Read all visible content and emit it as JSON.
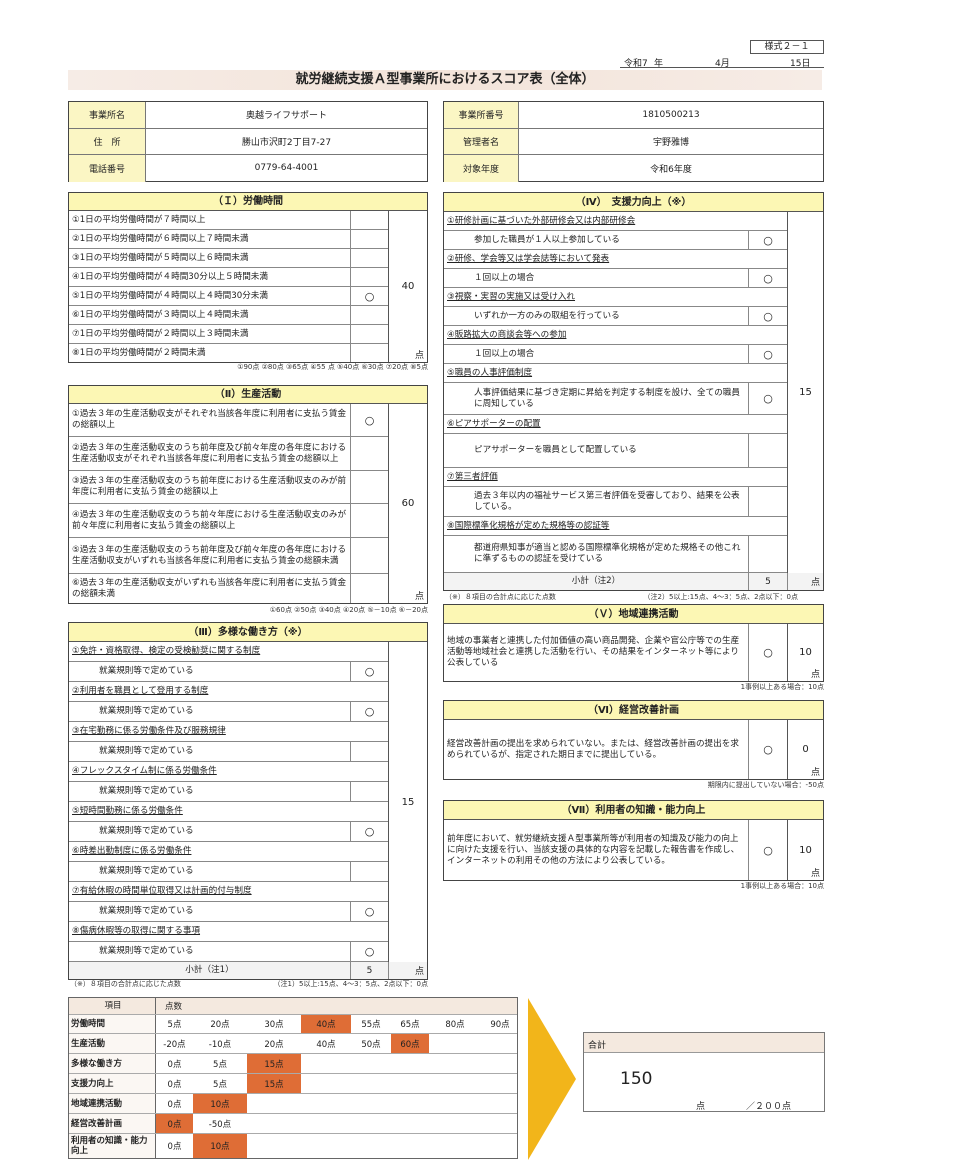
{
  "header": {
    "form_id": "様式２－１",
    "era_year": "令和7",
    "year_unit": "年",
    "month": "4月",
    "day": "15日",
    "title": "就労継続支援Ａ型事業所におけるスコア表（全体）"
  },
  "info_left": [
    {
      "label": "事業所名",
      "value": "奥越ライフサポート"
    },
    {
      "label": "住　所",
      "value": "勝山市沢町2丁目7-27"
    },
    {
      "label": "電話番号",
      "value": "0779-64-4001"
    }
  ],
  "info_right": [
    {
      "label": "事業所番号",
      "value": "1810500213"
    },
    {
      "label": "管理者名",
      "value": "宇野雅博"
    },
    {
      "label": "対象年度",
      "value": "令和6年度"
    }
  ],
  "sec1": {
    "title": "（Ｉ）労働時間",
    "score": "40",
    "unit": "点",
    "note": "①90点 ②80点 ③65点 ④55 点 ⑤40点 ⑥30点 ⑦20点 ⑧5点",
    "items": [
      {
        "text": "①1日の平均労働時間が７時間以上",
        "mark": ""
      },
      {
        "text": "②1日の平均労働時間が６時間以上７時間未満",
        "mark": ""
      },
      {
        "text": "③1日の平均労働時間が５時間以上６時間未満",
        "mark": ""
      },
      {
        "text": "④1日の平均労働時間が４時間30分以上５時間未満",
        "mark": ""
      },
      {
        "text": "⑤1日の平均労働時間が４時間以上４時間30分未満",
        "mark": "○"
      },
      {
        "text": "⑥1日の平均労働時間が３時間以上４時間未満",
        "mark": ""
      },
      {
        "text": "⑦1日の平均労働時間が２時間以上３時間未満",
        "mark": ""
      },
      {
        "text": "⑧1日の平均労働時間が２時間未満",
        "mark": ""
      }
    ]
  },
  "sec2": {
    "title": "（Ⅱ）生産活動",
    "score": "60",
    "unit": "点",
    "note": "①60点 ②50点 ③40点 ④20点 ⑤－10点 ⑥－20点",
    "items": [
      {
        "text": "①過去３年の生産活動収支がそれぞれ当該各年度に利用者に支払う賃金の総額以上",
        "mark": "○"
      },
      {
        "text": "②過去３年の生産活動収支のうち前年度及び前々年度の各年度における生産活動収支がそれぞれ当該各年度に利用者に支払う賃金の総額以上",
        "mark": ""
      },
      {
        "text": "③過去３年の生産活動収支のうち前年度における生産活動収支のみが前年度に利用者に支払う賃金の総額以上",
        "mark": ""
      },
      {
        "text": "④過去３年の生産活動収支のうち前々年度における生産活動収支のみが前々年度に利用者に支払う賃金の総額以上",
        "mark": ""
      },
      {
        "text": "⑤過去３年の生産活動収支のうち前年度及び前々年度の各年度における生産活動収支がいずれも当該各年度に利用者に支払う賃金の総額未満",
        "mark": ""
      },
      {
        "text": "⑥過去３年の生産活動収支がいずれも当該各年度に利用者に支払う賃金の総額未満",
        "mark": ""
      }
    ]
  },
  "sec3": {
    "title": "（Ⅲ）多様な働き方（※）",
    "score": "15",
    "subtotal_label": "小計（注1）",
    "subtotal": "5",
    "unit": "点",
    "note_left": "（※）８項目の合計点に応じた点数",
    "note_right": "（注1）5以上:15点、4～3：5点、2点以下：0点",
    "items": [
      {
        "heading": "①免許・資格取得、検定の受検勧奨に関する制度",
        "sub": "就業規則等で定めている",
        "mark": "○"
      },
      {
        "heading": "②利用者を職員として登用する制度",
        "sub": "就業規則等で定めている",
        "mark": "○"
      },
      {
        "heading": "③在宅勤務に係る労働条件及び服務規律",
        "sub": "就業規則等で定めている",
        "mark": ""
      },
      {
        "heading": "④フレックスタイム制に係る労働条件",
        "sub": "就業規則等で定めている",
        "mark": ""
      },
      {
        "heading": "⑤短時間勤務に係る労働条件",
        "sub": "就業規則等で定めている",
        "mark": "○"
      },
      {
        "heading": "⑥時差出勤制度に係る労働条件",
        "sub": "就業規則等で定めている",
        "mark": ""
      },
      {
        "heading": "⑦有給休暇の時間単位取得又は計画的付与制度",
        "sub": "就業規則等で定めている",
        "mark": "○"
      },
      {
        "heading": "⑧傷病休暇等の取得に関する事項",
        "sub": "就業規則等で定めている",
        "mark": "○"
      }
    ]
  },
  "sec4": {
    "title": "（Ⅳ）　支援力向上（※）",
    "score": "15",
    "subtotal_label": "小計（注2）",
    "subtotal": "5",
    "unit": "点",
    "note_left": "（※）８項目の合計点に応じた点数",
    "note_right": "（注2）5以上:15点、4～3：5点、2点以下：0点",
    "items": [
      {
        "heading": "①研修計画に基づいた外部研修会又は内部研修会",
        "sub": "参加した職員が１人以上参加している",
        "mark": "○"
      },
      {
        "heading": "②研修、学会等又は学会誌等において発表",
        "sub": "１回以上の場合",
        "mark": "○"
      },
      {
        "heading": "③視察・実習の実施又は受け入れ",
        "sub": "いずれか一方のみの取組を行っている",
        "mark": "○"
      },
      {
        "heading": "④販路拡大の商談会等への参加",
        "sub": "１回以上の場合",
        "mark": "○"
      },
      {
        "heading": "⑤職員の人事評価制度",
        "sub": "人事評価結果に基づき定期に昇給を判定する制度を設け、全ての職員に周知している",
        "mark": "○"
      },
      {
        "heading": "⑥ピアサポーターの配置",
        "sub": "ピアサポーターを職員として配置している",
        "mark": ""
      },
      {
        "heading": "⑦第三者評価",
        "sub": "過去３年以内の福祉サービス第三者評価を受審しており、結果を公表している。",
        "mark": ""
      },
      {
        "heading": "⑧国際標準化規格が定めた規格等の認証等",
        "sub": "都道府県知事が適当と認める国際標準化規格が定めた規格その他これに準ずるものの認証を受けている",
        "mark": ""
      }
    ]
  },
  "sec5": {
    "title": "（Ｖ）地域連携活動",
    "text": "地域の事業者と連携した付加価値の高い商品開発、企業や官公庁等での生産活動等地域社会と連携した活動を行い、その結果をインターネット等により公表している",
    "mark": "○",
    "score": "10",
    "unit": "点",
    "note": "1事例以上ある場合：10点"
  },
  "sec6": {
    "title": "（Ⅵ）経営改善計画",
    "text": "経営改善計画の提出を求められていない。または、経営改善計画の提出を求められているが、指定された期日までに提出している。",
    "mark": "○",
    "score": "0",
    "unit": "点",
    "note": "期限内に提出していない場合：-50点"
  },
  "sec7": {
    "title": "（Ⅶ）利用者の知識・能力向上",
    "text": "前年度において、就労継続支援Ａ型事業所等が利用者の知識及び能力の向上に向けた支援を行い、当該支援の具体的な内容を記載した報告書を作成し、インターネットの利用その他の方法により公表している。",
    "mark": "○",
    "score": "10",
    "unit": "点",
    "note": "1事例以上ある場合：10点"
  },
  "summary": {
    "header_item": "項目",
    "header_score": "点数",
    "highlight_color": "#df6d36",
    "rows": [
      {
        "label": "労働時間",
        "values": [
          "5点",
          "20点",
          "30点",
          "40点",
          "55点",
          "65点",
          "80点",
          "90点"
        ],
        "selected": 3
      },
      {
        "label": "生産活動",
        "values": [
          "-20点",
          "-10点",
          "20点",
          "40点",
          "50点",
          "60点"
        ],
        "selected": 5
      },
      {
        "label": "多様な働き方",
        "values": [
          "0点",
          "5点",
          "15点"
        ],
        "selected": 2
      },
      {
        "label": "支援力向上",
        "values": [
          "0点",
          "5点",
          "15点"
        ],
        "selected": 2
      },
      {
        "label": "地域連携活動",
        "values": [
          "0点",
          "10点"
        ],
        "selected": 1
      },
      {
        "label": "経営改善計画",
        "values": [
          "0点",
          "-50点"
        ],
        "selected": 0
      },
      {
        "label": "利用者の知識・能力向上",
        "values": [
          "0点",
          "10点"
        ],
        "selected": 1
      }
    ]
  },
  "total": {
    "label": "合計",
    "value": "150",
    "unit": "点",
    "max": "／２００点"
  }
}
